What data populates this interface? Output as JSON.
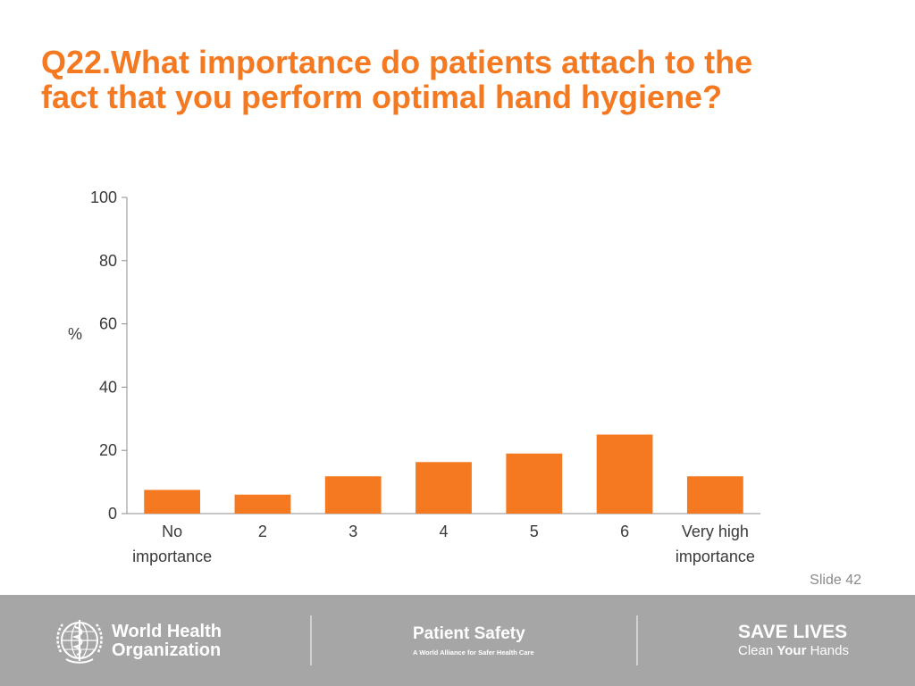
{
  "slide": {
    "title_line1": "Q22.What importance do patients attach to the",
    "title_line2": "fact that you perform optimal hand hygiene?",
    "slide_number": "Slide 42"
  },
  "footer": {
    "who_line1": "World Health",
    "who_line2": "Organization",
    "patient_safety_title": "Patient Safety",
    "patient_safety_subtitle": "A World Alliance for Safer Health Care",
    "save_lives": "SAVE LIVES",
    "clean_prefix": "Clean ",
    "clean_your": "Your",
    "clean_suffix": " Hands"
  },
  "colors": {
    "accent": "#f47920",
    "footer_bg": "#a6a6a6"
  },
  "chart_data": {
    "type": "bar",
    "title": "Q22.What importance do patients attach to the fact that you perform optimal hand hygiene?",
    "ylabel": "%",
    "xlabel": "",
    "ylim": [
      0,
      100
    ],
    "yticks": [
      0,
      20,
      40,
      60,
      80,
      100
    ],
    "grid": false,
    "categories": [
      [
        "No",
        "importance"
      ],
      [
        "2"
      ],
      [
        "3"
      ],
      [
        "4"
      ],
      [
        "5"
      ],
      [
        "6"
      ],
      [
        "Very high",
        "importance"
      ]
    ],
    "values": [
      7.5,
      6,
      11.8,
      16.3,
      19,
      25,
      11.8
    ],
    "bar_color": "#f47920"
  }
}
